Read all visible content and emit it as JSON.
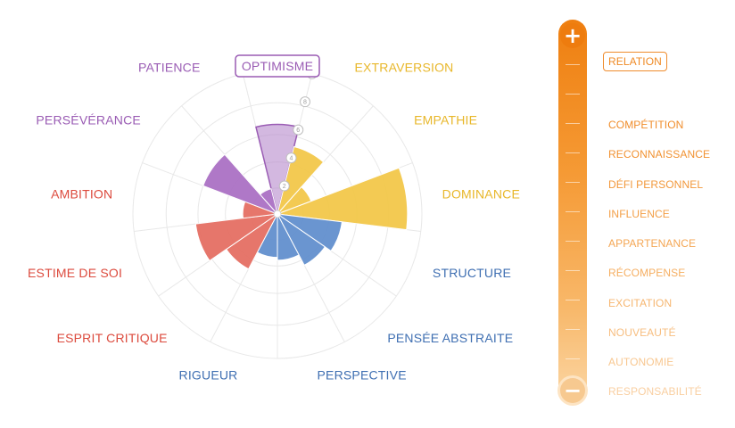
{
  "chart_data": {
    "type": "polar-bar",
    "max_value": 10,
    "ticks": [
      0,
      2,
      4,
      6,
      8,
      10
    ],
    "highlighted_axis": "OPTIMISME",
    "axes": [
      {
        "label": "OPTIMISME",
        "value": 6.2,
        "color": "#b689cb"
      },
      {
        "label": "EXTRAVERSION",
        "value": 4.8,
        "color": "#f2c644"
      },
      {
        "label": "EMPATHIE",
        "value": 2.5,
        "color": "#f2c644"
      },
      {
        "label": "DOMINANCE",
        "value": 9.0,
        "color": "#f2c644"
      },
      {
        "label": "STRUCTURE",
        "value": 4.5,
        "color": "#5d8ccc"
      },
      {
        "label": "PENSÉE ABSTRAITE",
        "value": 4.0,
        "color": "#5d8ccc"
      },
      {
        "label": "PERSPECTIVE",
        "value": 3.2,
        "color": "#5d8ccc"
      },
      {
        "label": "RIGUEUR",
        "value": 3.0,
        "color": "#5d8ccc"
      },
      {
        "label": "ESPRIT CRITIQUE",
        "value": 4.3,
        "color": "#e46a5e"
      },
      {
        "label": "ESTIME DE SOI",
        "value": 5.7,
        "color": "#e46a5e"
      },
      {
        "label": "AMBITION",
        "value": 2.4,
        "color": "#e46a5e"
      },
      {
        "label": "PERSÉVÉRANCE",
        "value": 5.5,
        "color": "#a86dc2"
      },
      {
        "label": "PATIENCE",
        "value": 1.8,
        "color": "#a86dc2"
      }
    ],
    "label_colors": {
      "purple": "#9a5cb4",
      "yellow": "#e8b72a",
      "blue": "#3f6fb2",
      "red": "#dc4a3d"
    }
  },
  "scale": {
    "plus_label": "+",
    "minus_label": "−",
    "gradient_top": "#ef7f10",
    "gradient_bottom": "#fbd7a6"
  },
  "factors": [
    {
      "label": "RELATION",
      "selected": true,
      "color": "#ef8a25"
    },
    {
      "label": "COMPÉTITION",
      "selected": false,
      "color": "#f08d2b"
    },
    {
      "label": "RECONNAISSANCE",
      "selected": false,
      "color": "#f19232"
    },
    {
      "label": "DÉFI PERSONNEL",
      "selected": false,
      "color": "#f2983b"
    },
    {
      "label": "INFLUENCE",
      "selected": false,
      "color": "#f39f47"
    },
    {
      "label": "APPARTENANCE",
      "selected": false,
      "color": "#f4a653"
    },
    {
      "label": "RÉCOMPENSE",
      "selected": false,
      "color": "#f5ae61"
    },
    {
      "label": "EXCITATION",
      "selected": false,
      "color": "#f6b670"
    },
    {
      "label": "NOUVEAUTÉ",
      "selected": false,
      "color": "#f7be80"
    },
    {
      "label": "AUTONOMIE",
      "selected": false,
      "color": "#f8c790"
    },
    {
      "label": "RESPONSABILITÉ",
      "selected": false,
      "color": "#f9cfa1"
    }
  ]
}
